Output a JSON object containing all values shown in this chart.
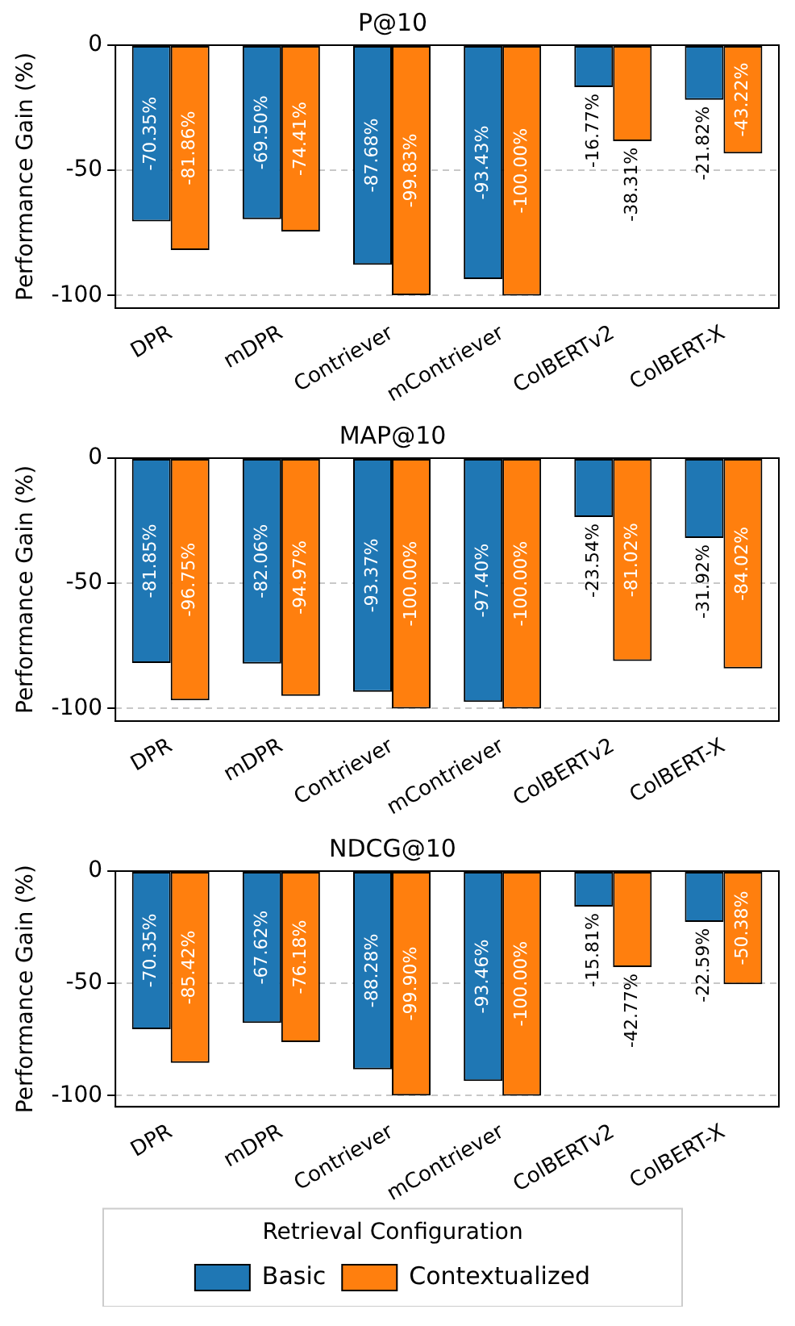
{
  "chart_data": [
    {
      "type": "bar",
      "title": "P@10",
      "ylabel": "Performance Gain (%)",
      "categories": [
        "DPR",
        "mDPR",
        "Contriever",
        "mContriever",
        "ColBERTv2",
        "ColBERT-X"
      ],
      "ylim": [
        -105,
        0
      ],
      "yticks": [
        -100,
        -50,
        0
      ],
      "grid": "y",
      "legend": false,
      "series": [
        {
          "color": "#1f77b4",
          "values": [
            -70.35,
            -69.5,
            -87.68,
            -93.43,
            -16.77,
            -21.82
          ],
          "value_labels": [
            "-70.35%",
            "-69.50%",
            "-87.68%",
            "-93.43%",
            "-16.77%",
            "-21.82%"
          ]
        },
        {
          "color": "#ff7f0e",
          "values": [
            -81.86,
            -74.41,
            -99.83,
            -100.0,
            -38.31,
            -43.22
          ],
          "value_labels": [
            "-81.86%",
            "-74.41%",
            "-99.83%",
            "-100.00%",
            "-38.31%",
            "-43.22%"
          ]
        }
      ]
    },
    {
      "type": "bar",
      "title": "MAP@10",
      "ylabel": "Performance Gain (%)",
      "categories": [
        "DPR",
        "mDPR",
        "Contriever",
        "mContriever",
        "ColBERTv2",
        "ColBERT-X"
      ],
      "ylim": [
        -105,
        0
      ],
      "yticks": [
        -100,
        -50,
        0
      ],
      "grid": "y",
      "legend": false,
      "series": [
        {
          "color": "#1f77b4",
          "values": [
            -81.85,
            -82.06,
            -93.37,
            -97.4,
            -23.54,
            -31.92
          ],
          "value_labels": [
            "-81.85%",
            "-82.06%",
            "-93.37%",
            "-97.40%",
            "-23.54%",
            "-31.92%"
          ]
        },
        {
          "color": "#ff7f0e",
          "values": [
            -96.75,
            -94.97,
            -100.0,
            -100.0,
            -81.02,
            -84.02
          ],
          "value_labels": [
            "-96.75%",
            "-94.97%",
            "-100.00%",
            "-100.00%",
            "-81.02%",
            "-84.02%"
          ]
        }
      ]
    },
    {
      "type": "bar",
      "title": "NDCG@10",
      "ylabel": "Performance Gain (%)",
      "categories": [
        "DPR",
        "mDPR",
        "Contriever",
        "mContriever",
        "ColBERTv2",
        "ColBERT-X"
      ],
      "ylim": [
        -105,
        0
      ],
      "yticks": [
        -100,
        -50,
        0
      ],
      "grid": "y",
      "legend": "bottom",
      "legend_title": "Retrieval Configuration",
      "series": [
        {
          "name": "Basic",
          "color": "#1f77b4",
          "values": [
            -70.35,
            -67.62,
            -88.28,
            -93.46,
            -15.81,
            -22.59
          ],
          "value_labels": [
            "-70.35%",
            "-67.62%",
            "-88.28%",
            "-93.46%",
            "-15.81%",
            "-22.59%"
          ]
        },
        {
          "name": "Contextualized",
          "color": "#ff7f0e",
          "values": [
            -85.42,
            -76.18,
            -99.9,
            -100.0,
            -42.77,
            -50.38
          ],
          "value_labels": [
            "-85.42%",
            "-76.18%",
            "-99.90%",
            "-100.00%",
            "-42.77%",
            "-50.38%"
          ]
        }
      ]
    }
  ]
}
